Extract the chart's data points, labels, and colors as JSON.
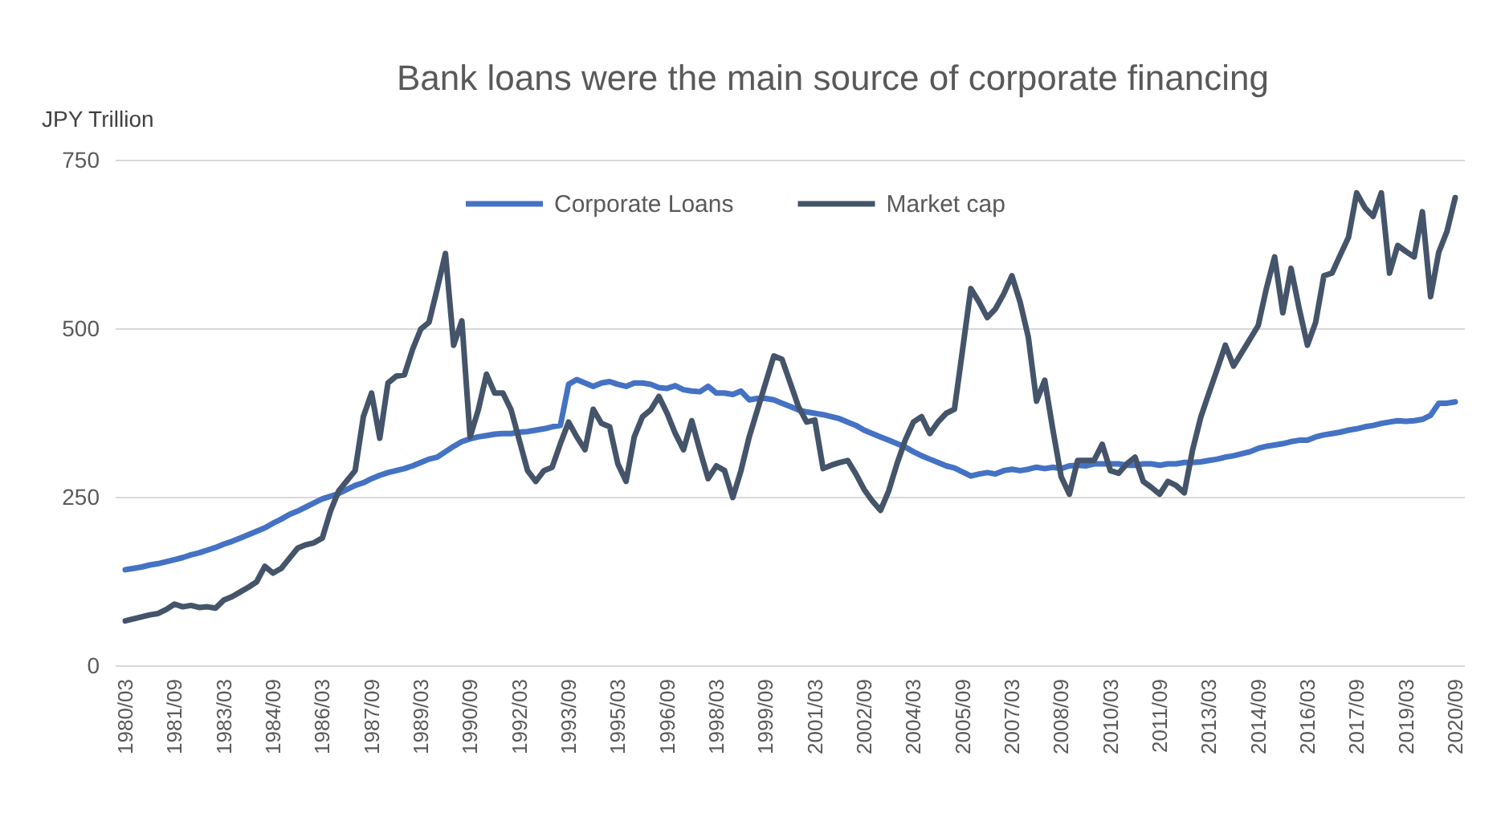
{
  "chart_data": {
    "type": "line",
    "title": "Bank loans were the main source of corporate financing",
    "ylabel": "JPY Trillion",
    "categories": [
      "1980/03",
      null,
      null,
      null,
      null,
      null,
      "1981/09",
      null,
      null,
      null,
      null,
      null,
      "1983/03",
      null,
      null,
      null,
      null,
      null,
      "1984/09",
      null,
      null,
      null,
      null,
      null,
      "1986/03",
      null,
      null,
      null,
      null,
      null,
      "1987/09",
      null,
      null,
      null,
      null,
      null,
      "1989/03",
      null,
      null,
      null,
      null,
      null,
      "1990/09",
      null,
      null,
      null,
      null,
      null,
      "1992/03",
      null,
      null,
      null,
      null,
      null,
      "1993/09",
      null,
      null,
      null,
      null,
      null,
      "1995/03",
      null,
      null,
      null,
      null,
      null,
      "1996/09",
      null,
      null,
      null,
      null,
      null,
      "1998/03",
      null,
      null,
      null,
      null,
      null,
      "1999/09",
      null,
      null,
      null,
      null,
      null,
      "2001/03",
      null,
      null,
      null,
      null,
      null,
      "2002/09",
      null,
      null,
      null,
      null,
      null,
      "2004/03",
      null,
      null,
      null,
      null,
      null,
      "2005/09",
      null,
      null,
      null,
      null,
      null,
      "2007/03",
      null,
      null,
      null,
      null,
      null,
      "2008/09",
      null,
      null,
      null,
      null,
      null,
      "2010/03",
      null,
      null,
      null,
      null,
      null,
      "2011/09",
      null,
      null,
      null,
      null,
      null,
      "2013/03",
      null,
      null,
      null,
      null,
      null,
      "2014/09",
      null,
      null,
      null,
      null,
      null,
      "2016/03",
      null,
      null,
      null,
      null,
      null,
      "2017/09",
      null,
      null,
      null,
      null,
      null,
      "2019/03",
      null,
      null,
      null,
      null,
      null,
      "2020/09"
    ],
    "series": [
      {
        "name": "Corporate Loans",
        "color": "#4472c4",
        "values": [
          143,
          145,
          147,
          150,
          152,
          155,
          158,
          161,
          165,
          168,
          172,
          176,
          181,
          185,
          190,
          195,
          200,
          205,
          212,
          218,
          225,
          230,
          236,
          242,
          248,
          252,
          256,
          262,
          268,
          272,
          278,
          283,
          287,
          290,
          293,
          297,
          302,
          307,
          310,
          318,
          326,
          333,
          337,
          340,
          342,
          344,
          345,
          345,
          347,
          348,
          350,
          352,
          355,
          357,
          418,
          425,
          420,
          415,
          420,
          422,
          418,
          415,
          420,
          420,
          418,
          413,
          412,
          416,
          410,
          408,
          407,
          415,
          405,
          405,
          403,
          408,
          395,
          397,
          397,
          395,
          390,
          385,
          380,
          377,
          375,
          373,
          370,
          367,
          362,
          357,
          350,
          345,
          340,
          335,
          330,
          325,
          318,
          312,
          307,
          302,
          297,
          294,
          288,
          282,
          285,
          287,
          285,
          290,
          292,
          290,
          292,
          295,
          293,
          295,
          293,
          297,
          298,
          297,
          300,
          300,
          300,
          300,
          298,
          298,
          300,
          300,
          298,
          300,
          300,
          302,
          302,
          303,
          305,
          307,
          310,
          312,
          315,
          318,
          323,
          326,
          328,
          330,
          333,
          335,
          335,
          340,
          343,
          345,
          347,
          350,
          352,
          355,
          357,
          360,
          362,
          364,
          363,
          364,
          366,
          372,
          390,
          390,
          392
        ]
      },
      {
        "name": "Market cap",
        "color": "#44546a",
        "values": [
          67,
          70,
          73,
          76,
          78,
          84,
          92,
          88,
          90,
          87,
          88,
          86,
          98,
          103,
          110,
          117,
          125,
          148,
          138,
          145,
          160,
          175,
          180,
          183,
          190,
          230,
          260,
          275,
          290,
          370,
          405,
          338,
          420,
          430,
          432,
          470,
          500,
          510,
          560,
          612,
          476,
          512,
          340,
          380,
          433,
          405,
          405,
          380,
          335,
          290,
          274,
          290,
          295,
          330,
          362,
          340,
          321,
          381,
          360,
          355,
          300,
          274,
          340,
          370,
          380,
          400,
          375,
          345,
          321,
          364,
          320,
          278,
          297,
          290,
          250,
          290,
          340,
          380,
          420,
          460,
          455,
          420,
          385,
          362,
          365,
          293,
          298,
          302,
          305,
          285,
          262,
          245,
          231,
          260,
          300,
          335,
          362,
          370,
          345,
          362,
          375,
          381,
          470,
          560,
          540,
          517,
          530,
          552,
          579,
          540,
          488,
          393,
          424,
          350,
          281,
          255,
          305,
          305,
          305,
          329,
          290,
          286,
          300,
          310,
          274,
          265,
          255,
          274,
          268,
          257,
          320,
          369,
          405,
          440,
          476,
          445,
          465,
          485,
          505,
          560,
          607,
          524,
          590,
          530,
          476,
          510,
          579,
          583,
          610,
          636,
          702,
          680,
          667,
          702,
          583,
          624,
          615,
          607,
          674,
          548,
          614,
          645,
          695
        ]
      }
    ],
    "ylim": [
      0,
      750
    ],
    "yticks": [
      0,
      250,
      500,
      750
    ],
    "grid": "y",
    "legend": "top"
  }
}
